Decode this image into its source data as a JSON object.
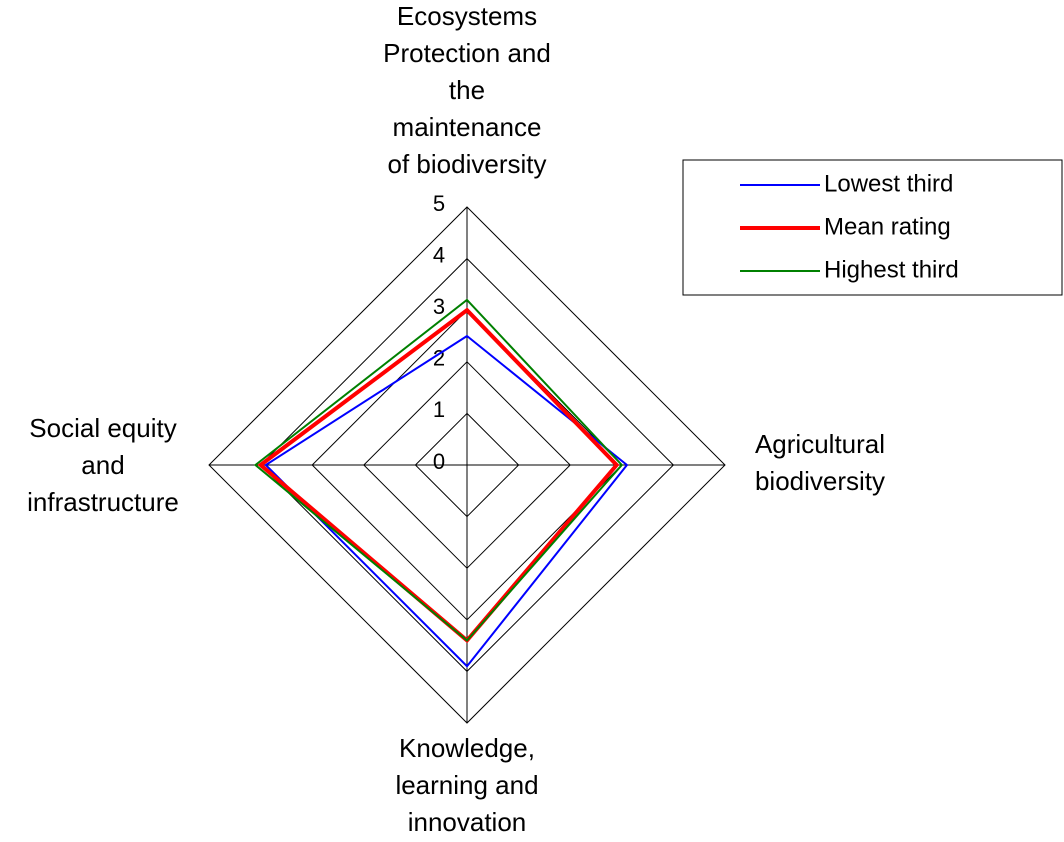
{
  "chart_data": {
    "type": "radar",
    "categories": [
      "Ecosystems\nProtection and\nthe\nmaintenance\nof biodiversity",
      "Agricultural\nbiodiversity",
      "Knowledge,\nlearning and\ninnovation",
      "Social equity\nand\ninfrastructure"
    ],
    "series": [
      {
        "name": "Lowest third",
        "color": "#0000ff",
        "values": [
          2.5,
          3.1,
          3.9,
          3.9
        ]
      },
      {
        "name": "Mean rating",
        "color": "#ff0000",
        "values": [
          3.0,
          2.9,
          3.4,
          4.0
        ]
      },
      {
        "name": "Highest third",
        "color": "#008000",
        "values": [
          3.2,
          3.0,
          3.4,
          4.1
        ]
      }
    ],
    "ylim": [
      0,
      5
    ],
    "yticks": [
      0,
      1,
      2,
      3,
      4,
      5
    ],
    "grid": true,
    "legend": "upper right"
  }
}
